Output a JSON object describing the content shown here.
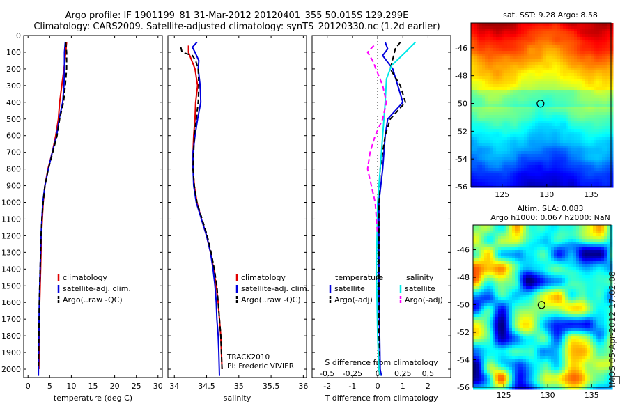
{
  "header": {
    "line1": "Argo profile: IF 1901199_81 31-Mar-2012 20120401_355 50.015S 129.299E",
    "line2": "Climatology: CARS2009. Satellite-adjusted climatology: synTS_20120330.nc (1.2d earlier)"
  },
  "colors": {
    "climatology": "#e00000",
    "satellite": "#0000dd",
    "argo": "#000000",
    "s_satellite": "#00e8e8",
    "s_argo": "#ff00ff"
  },
  "chart_data": [
    {
      "type": "line",
      "id": "temperature",
      "xlabel": "temperature (deg C)",
      "ylabel": "",
      "xlim": [
        -1,
        31
      ],
      "ylim": [
        2050,
        0
      ],
      "xticks": [
        0,
        5,
        10,
        15,
        20,
        25,
        30
      ],
      "yticks": [
        0,
        100,
        200,
        300,
        400,
        500,
        600,
        700,
        800,
        900,
        1000,
        1100,
        1200,
        1300,
        1400,
        1500,
        1600,
        1700,
        1800,
        1900,
        2000
      ],
      "legend": [
        "climatology",
        "satellite-adj. clim.",
        "Argo(..raw -QC)"
      ],
      "series": [
        {
          "name": "climatology",
          "color": "#e00000",
          "dash": false,
          "points": [
            [
              8.9,
              40
            ],
            [
              8.7,
              100
            ],
            [
              8.3,
              200
            ],
            [
              7.8,
              300
            ],
            [
              7.3,
              400
            ],
            [
              7.0,
              500
            ],
            [
              6.4,
              600
            ],
            [
              5.6,
              700
            ],
            [
              4.6,
              800
            ],
            [
              3.9,
              900
            ],
            [
              3.5,
              1000
            ],
            [
              3.3,
              1100
            ],
            [
              3.1,
              1200
            ],
            [
              2.9,
              1400
            ],
            [
              2.7,
              1600
            ],
            [
              2.6,
              1800
            ],
            [
              2.5,
              2000
            ]
          ]
        },
        {
          "name": "satellite-adj. clim.",
          "color": "#0000dd",
          "dash": false,
          "points": [
            [
              8.6,
              40
            ],
            [
              8.4,
              100
            ],
            [
              8.4,
              200
            ],
            [
              8.3,
              300
            ],
            [
              8.0,
              400
            ],
            [
              7.2,
              500
            ],
            [
              6.6,
              600
            ],
            [
              5.6,
              700
            ],
            [
              4.7,
              800
            ],
            [
              3.9,
              900
            ],
            [
              3.4,
              1000
            ],
            [
              3.2,
              1100
            ],
            [
              3.0,
              1200
            ],
            [
              2.8,
              1400
            ],
            [
              2.6,
              1600
            ],
            [
              2.5,
              1800
            ],
            [
              2.4,
              2040
            ]
          ]
        },
        {
          "name": "Argo(..raw -QC)",
          "color": "#000000",
          "dash": true,
          "points": [
            [
              8.7,
              40
            ],
            [
              8.9,
              100
            ],
            [
              8.9,
              200
            ],
            [
              8.6,
              300
            ],
            [
              8.2,
              400
            ],
            [
              7.3,
              500
            ],
            [
              6.7,
              600
            ],
            [
              5.7,
              700
            ],
            [
              4.7,
              800
            ],
            [
              3.9,
              900
            ],
            [
              3.5,
              1000
            ],
            [
              3.2,
              1100
            ],
            [
              3.0,
              1200
            ],
            [
              2.8,
              1400
            ],
            [
              2.6,
              1600
            ],
            [
              2.5,
              1800
            ],
            [
              2.4,
              2000
            ]
          ]
        }
      ]
    },
    {
      "type": "line",
      "id": "salinity",
      "xlabel": "salinity",
      "ylabel": "",
      "xlim": [
        33.9,
        36.05
      ],
      "ylim": [
        2050,
        0
      ],
      "xticks": [
        34,
        34.5,
        35,
        35.5,
        36
      ],
      "xticklabels": [
        "34",
        "34.5",
        "35",
        "35.5",
        "36"
      ],
      "legend": [
        "climatology",
        "satellite-adj. clim.",
        "Argo(..raw -QC)"
      ],
      "annotations": [
        "TRACK2010",
        "PI: Frederic VIVIER"
      ],
      "series": [
        {
          "name": "climatology",
          "color": "#e00000",
          "dash": false,
          "points": [
            [
              34.22,
              60
            ],
            [
              34.22,
              100
            ],
            [
              34.32,
              200
            ],
            [
              34.36,
              300
            ],
            [
              34.33,
              400
            ],
            [
              34.32,
              500
            ],
            [
              34.3,
              600
            ],
            [
              34.29,
              700
            ],
            [
              34.29,
              800
            ],
            [
              34.31,
              900
            ],
            [
              34.35,
              1000
            ],
            [
              34.42,
              1100
            ],
            [
              34.5,
              1200
            ],
            [
              34.56,
              1300
            ],
            [
              34.61,
              1400
            ],
            [
              34.65,
              1500
            ],
            [
              34.68,
              1600
            ],
            [
              34.7,
              1700
            ],
            [
              34.72,
              1800
            ],
            [
              34.73,
              1900
            ],
            [
              34.74,
              2000
            ]
          ]
        },
        {
          "name": "satellite-adj. clim.",
          "color": "#0000dd",
          "dash": false,
          "points": [
            [
              34.35,
              40
            ],
            [
              34.28,
              70
            ],
            [
              34.32,
              100
            ],
            [
              34.38,
              150
            ],
            [
              34.37,
              200
            ],
            [
              34.4,
              300
            ],
            [
              34.41,
              400
            ],
            [
              34.36,
              500
            ],
            [
              34.32,
              600
            ],
            [
              34.29,
              700
            ],
            [
              34.29,
              800
            ],
            [
              34.3,
              900
            ],
            [
              34.34,
              1000
            ],
            [
              34.42,
              1100
            ],
            [
              34.5,
              1200
            ],
            [
              34.56,
              1300
            ],
            [
              34.6,
              1400
            ],
            [
              34.63,
              1500
            ],
            [
              34.65,
              1600
            ],
            [
              34.66,
              1700
            ],
            [
              34.68,
              1800
            ],
            [
              34.69,
              1900
            ],
            [
              34.7,
              2040
            ]
          ]
        },
        {
          "name": "Argo(..raw -QC)",
          "color": "#000000",
          "dash": true,
          "points": [
            [
              34.1,
              70
            ],
            [
              34.12,
              100
            ],
            [
              34.28,
              120
            ],
            [
              34.33,
              150
            ],
            [
              34.37,
              200
            ],
            [
              34.38,
              300
            ],
            [
              34.37,
              400
            ],
            [
              34.34,
              500
            ],
            [
              34.31,
              600
            ],
            [
              34.3,
              700
            ],
            [
              34.29,
              800
            ],
            [
              34.31,
              900
            ],
            [
              34.35,
              1000
            ],
            [
              34.43,
              1100
            ],
            [
              34.51,
              1200
            ],
            [
              34.57,
              1300
            ],
            [
              34.62,
              1400
            ],
            [
              34.66,
              1500
            ],
            [
              34.68,
              1600
            ],
            [
              34.7,
              1700
            ],
            [
              34.72,
              1800
            ],
            [
              34.73,
              1900
            ],
            [
              34.74,
              2000
            ]
          ]
        }
      ]
    },
    {
      "type": "line",
      "id": "difference",
      "xlabel": "T difference from climatology",
      "x2label": "S difference from climatology",
      "xlim": [
        -2.6,
        2.9
      ],
      "ylim": [
        2050,
        0
      ],
      "xticks": [
        -2,
        -1,
        0,
        1,
        2
      ],
      "x2ticks": [
        -0.5,
        -0.25,
        0,
        0.25,
        0.5
      ],
      "x2ticklabels": [
        "-0.5",
        "-0.25",
        "0",
        "0.25",
        "0.5"
      ],
      "legend_temperature": {
        "title": "temperature",
        "items": [
          "satellite",
          "Argo(-adj)"
        ]
      },
      "legend_salinity": {
        "title": "salinity",
        "items": [
          "satellite",
          "Argo(-adj)"
        ]
      },
      "series": [
        {
          "name": "satellite",
          "group": "temperature",
          "color": "#0000dd",
          "dash": false,
          "points": [
            [
              0.3,
              40
            ],
            [
              0.4,
              80
            ],
            [
              0.2,
              120
            ],
            [
              0.6,
              200
            ],
            [
              0.8,
              300
            ],
            [
              1.0,
              400
            ],
            [
              0.4,
              500
            ],
            [
              0.3,
              600
            ],
            [
              0.2,
              800
            ],
            [
              0.05,
              1000
            ],
            [
              0.05,
              1500
            ],
            [
              0.1,
              2000
            ],
            [
              0.15,
              2040
            ]
          ]
        },
        {
          "name": "Argo(-adj)",
          "group": "temperature",
          "color": "#000000",
          "dash": true,
          "points": [
            [
              0.9,
              40
            ],
            [
              0.7,
              80
            ],
            [
              0.5,
              200
            ],
            [
              0.9,
              300
            ],
            [
              1.1,
              400
            ],
            [
              0.8,
              450
            ],
            [
              0.5,
              500
            ],
            [
              0.3,
              600
            ],
            [
              0.1,
              800
            ],
            [
              0.05,
              1000
            ],
            [
              0.05,
              2000
            ]
          ]
        },
        {
          "name": "satellite",
          "group": "salinity",
          "color": "#00e8e8",
          "dash": false,
          "points": [
            [
              1.5,
              40
            ],
            [
              1.1,
              100
            ],
            [
              0.55,
              180
            ],
            [
              0.35,
              260
            ],
            [
              0.3,
              400
            ],
            [
              0.25,
              500
            ],
            [
              0.1,
              800
            ],
            [
              0.0,
              1000
            ],
            [
              -0.05,
              1400
            ],
            [
              0.0,
              1800
            ],
            [
              0.05,
              2000
            ],
            [
              0.1,
              2040
            ]
          ]
        },
        {
          "name": "Argo(-adj)",
          "group": "salinity",
          "color": "#ff00ff",
          "dash": true,
          "points": [
            [
              -0.15,
              60
            ],
            [
              -0.4,
              100
            ],
            [
              -0.2,
              150
            ],
            [
              0.2,
              300
            ],
            [
              0.35,
              400
            ],
            [
              0.2,
              500
            ],
            [
              -0.1,
              600
            ],
            [
              -0.3,
              700
            ],
            [
              -0.4,
              800
            ],
            [
              -0.1,
              1000
            ],
            [
              0.0,
              1200
            ]
          ]
        }
      ]
    },
    {
      "type": "heatmap",
      "id": "sst_map",
      "title": "sat. SST: 9.28  Argo: 8.58",
      "xlim": [
        121.5,
        137.2
      ],
      "ylim": [
        -56,
        -44.2
      ],
      "xticks": [
        125,
        130,
        135
      ],
      "yticks": [
        -46,
        -48,
        -50,
        -52,
        -54,
        -56
      ],
      "marker": {
        "lon": 129.299,
        "lat": -50.015
      }
    },
    {
      "type": "heatmap",
      "id": "sla_map",
      "title": "Altim. SLA: 0.083",
      "subtitle": "Argo h1000: 0.067  h2000: NaN",
      "xlim": [
        121.5,
        137.2
      ],
      "ylim": [
        -56,
        -44.2
      ],
      "xticks": [
        125,
        130,
        135
      ],
      "yticks": [
        -46,
        -48,
        -50,
        -52,
        -54,
        -56
      ],
      "marker": {
        "lon": 129.299,
        "lat": -50.015
      }
    }
  ],
  "side_stamp": "IMOS 05-Apr-2012 17:02:08"
}
